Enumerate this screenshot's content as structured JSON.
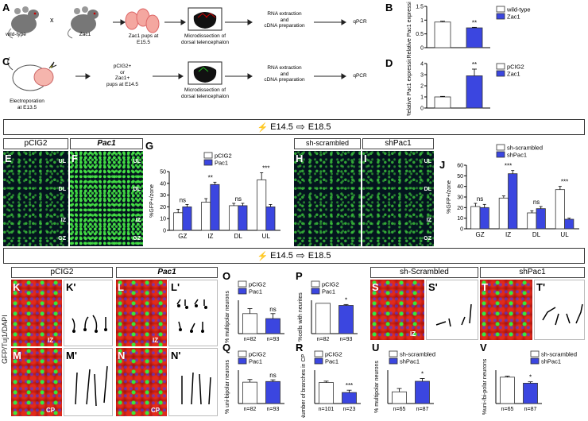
{
  "panels": {
    "A": "A",
    "B": "B",
    "C": "C",
    "D": "D",
    "E": "E",
    "F": "F",
    "G": "G",
    "H": "H",
    "I": "I",
    "J": "J",
    "K": "K",
    "K2": "K'",
    "L": "L",
    "L2": "L'",
    "M": "M",
    "M2": "M'",
    "N": "N",
    "N2": "N'",
    "O": "O",
    "P": "P",
    "Q": "Q",
    "R": "R",
    "S": "S",
    "S2": "S'",
    "T": "T",
    "T2": "T'",
    "U": "U",
    "V": "V"
  },
  "schemeA": {
    "mouse1": "wild-type",
    "mouse2": "Zac1",
    "cross": "x",
    "pups": "Zac1 pups at E15.5",
    "micro": "Microdissection of dorsal telencephalon",
    "rna1": "RNA extraction",
    "rna2": "and",
    "rna3": "cDNA preparation",
    "qpcr": "qPCR"
  },
  "schemeC": {
    "electro": "Electroporation at E13.5",
    "pups1": "pCIG2+",
    "pups2": "or",
    "pups3": "Zac1+",
    "pups4": "pups at E14.5",
    "micro": "Microdissection of dorsal telencephalon",
    "rna1": "RNA extraction",
    "rna2": "and",
    "rna3": "cDNA preparation",
    "qpcr": "qPCR"
  },
  "banner1": {
    "from": "E14.5",
    "to": "E18.5"
  },
  "banner2": {
    "from": "E14.5",
    "to": "E18.5"
  },
  "images": {
    "E_title": "pCIG2",
    "F_title": "Pac1",
    "H_title": "sh-scrambled",
    "I_title": "shPac1",
    "zones": {
      "ul": "UL",
      "dl": "DL",
      "iz": "IZ",
      "gz": "GZ"
    },
    "K_title": "pCIG2",
    "L_title": "Pac1",
    "S_title": "sh-Scrambled",
    "T_title": "shPac1",
    "stain": "GFP/Tuj1/DAPI",
    "cp": "CP",
    "iz": "IZ"
  },
  "colors": {
    "pac1": "#3b46e0",
    "control": "#ffffff",
    "stroke": "#333333"
  },
  "charts": {
    "B": {
      "ylabel": "Relative Pac1 expression",
      "legend": [
        "wild-type",
        "Zac1"
      ],
      "ticks": [
        "0",
        "0.5",
        "1",
        "1.5"
      ],
      "sig": "**"
    },
    "D": {
      "ylabel": "Relative Pac1 expression",
      "legend": [
        "pCIG2",
        "Zac1"
      ],
      "ticks": [
        "0",
        "1",
        "2",
        "3",
        "4"
      ],
      "sig": "**"
    },
    "G": {
      "ylabel": "%GFP+/zone",
      "legend": [
        "pCIG2",
        "Pac1"
      ],
      "ticks": [
        "0",
        "10",
        "20",
        "30",
        "40",
        "50"
      ],
      "categories": [
        "GZ",
        "IZ",
        "DL",
        "UL"
      ],
      "sig": [
        "ns",
        "**",
        "ns",
        "***"
      ]
    },
    "J": {
      "ylabel": "%GFP+/zone",
      "legend": [
        "sh-scrambled",
        "shPac1"
      ],
      "ticks": [
        "0",
        "10",
        "20",
        "30",
        "40",
        "50",
        "60"
      ],
      "categories": [
        "GZ",
        "IZ",
        "DL",
        "UL"
      ],
      "sig": [
        "ns",
        "***",
        "ns",
        "***"
      ]
    },
    "O": {
      "ylabel": "% multipolar neurons",
      "legend": [
        "pCIG2",
        "Pac1"
      ],
      "n": [
        "n=82",
        "n=93"
      ],
      "sig": "ns"
    },
    "P": {
      "ylabel": "%cells with neurites",
      "legend": [
        "pCIG2",
        "Pac1"
      ],
      "n": [
        "n=82",
        "n=93"
      ],
      "sig": "*"
    },
    "Q": {
      "ylabel": "% uni-bipolar neurons",
      "legend": [
        "pCIG2",
        "Pac1"
      ],
      "n": [
        "n=82",
        "n=93"
      ],
      "sig": "ns"
    },
    "R": {
      "ylabel": "Number of branches in CP",
      "legend": [
        "pCIG2",
        "Pac1"
      ],
      "n": [
        "n=101",
        "n=23"
      ],
      "sig": "***"
    },
    "U": {
      "ylabel": "% multipolar neurons",
      "legend": [
        "sh-scrambled",
        "shPac1"
      ],
      "n": [
        "n=65",
        "n=87"
      ],
      "sig": "*"
    },
    "V": {
      "ylabel": "%uni-/bi-polar neurons",
      "legend": [
        "sh-scrambled",
        "shPac1"
      ],
      "n": [
        "n=65",
        "n=87"
      ],
      "sig": "*"
    }
  },
  "chart_data": [
    {
      "type": "bar",
      "panel": "B",
      "categories": [
        "wild-type",
        "Zac1"
      ],
      "values": [
        0.93,
        0.72
      ],
      "errors": [
        0.03,
        0.02
      ],
      "ylim": [
        0,
        1.5
      ]
    },
    {
      "type": "bar",
      "panel": "D",
      "categories": [
        "pCIG2",
        "Zac1"
      ],
      "values": [
        1.0,
        2.9
      ],
      "errors": [
        0.05,
        0.6
      ],
      "ylim": [
        0,
        4
      ]
    },
    {
      "type": "bar",
      "panel": "G",
      "categories": [
        "GZ",
        "IZ",
        "DL",
        "UL"
      ],
      "series": [
        {
          "name": "pCIG2",
          "values": [
            15,
            24,
            21,
            43
          ],
          "errors": [
            3,
            3,
            2,
            6
          ]
        },
        {
          "name": "Pac1",
          "values": [
            20,
            39,
            21,
            20
          ],
          "errors": [
            2,
            2,
            2,
            2
          ]
        }
      ],
      "ylim": [
        0,
        50
      ]
    },
    {
      "type": "bar",
      "panel": "J",
      "categories": [
        "GZ",
        "IZ",
        "DL",
        "UL"
      ],
      "series": [
        {
          "name": "sh-scrambled",
          "values": [
            21,
            29,
            15,
            37
          ],
          "errors": [
            3,
            2,
            2,
            3
          ]
        },
        {
          "name": "shPac1",
          "values": [
            20,
            52,
            19,
            9
          ],
          "errors": [
            3,
            3,
            2,
            1
          ]
        }
      ],
      "ylim": [
        0,
        60
      ]
    },
    {
      "type": "bar",
      "panel": "O",
      "categories": [
        "pCIG2",
        "Pac1"
      ],
      "values": [
        36,
        27
      ],
      "errors": [
        9,
        9
      ],
      "ylim": [
        0,
        60
      ]
    },
    {
      "type": "bar",
      "panel": "P",
      "categories": [
        "pCIG2",
        "Pac1"
      ],
      "values": [
        100,
        93
      ],
      "errors": [
        0,
        3
      ],
      "ylim": [
        0,
        110
      ]
    },
    {
      "type": "bar",
      "panel": "Q",
      "categories": [
        "pCIG2",
        "Pac1"
      ],
      "values": [
        64,
        66
      ],
      "errors": [
        8,
        5
      ],
      "ylim": [
        0,
        100
      ]
    },
    {
      "type": "bar",
      "panel": "R",
      "categories": [
        "pCIG2",
        "Pac1"
      ],
      "values": [
        6.3,
        3.3
      ],
      "errors": [
        0.4,
        0.7
      ],
      "ylim": [
        0,
        10
      ]
    },
    {
      "type": "bar",
      "panel": "U",
      "categories": [
        "sh-scrambled",
        "shPac1"
      ],
      "values": [
        21,
        40
      ],
      "errors": [
        6,
        5
      ],
      "ylim": [
        0,
        60
      ]
    },
    {
      "type": "bar",
      "panel": "V",
      "categories": [
        "sh-scrambled",
        "shPac1"
      ],
      "values": [
        79,
        61
      ],
      "errors": [
        3,
        4
      ],
      "ylim": [
        0,
        100
      ]
    }
  ]
}
